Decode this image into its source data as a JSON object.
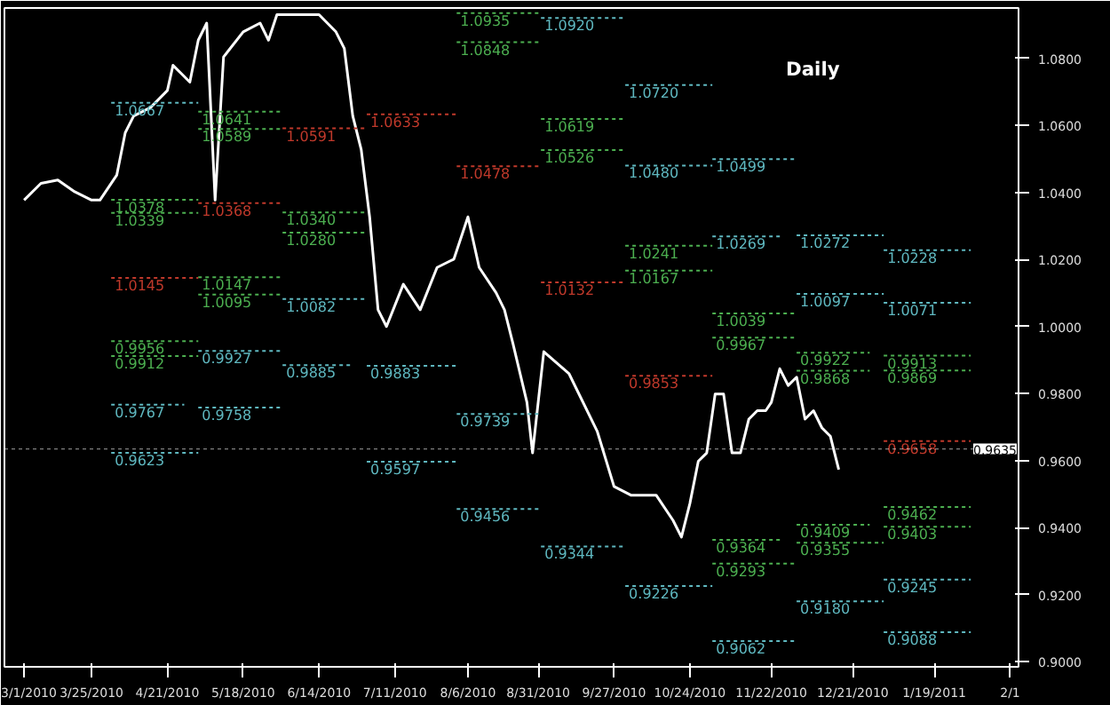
{
  "chart_data": {
    "type": "line",
    "title": "Daily",
    "line_style": "solid",
    "x": [
      "2010-03-01",
      "2010-03-07",
      "2010-03-13",
      "2010-03-19",
      "2010-03-25",
      "2010-03-28",
      "2010-04-03",
      "2010-04-06",
      "2010-04-09",
      "2010-04-15",
      "2010-04-21",
      "2010-04-23",
      "2010-04-26",
      "2010-04-29",
      "2010-05-02",
      "2010-05-05",
      "2010-05-08",
      "2010-05-11",
      "2010-05-18",
      "2010-05-24",
      "2010-05-27",
      "2010-05-30",
      "2010-06-05",
      "2010-06-14",
      "2010-06-20",
      "2010-06-23",
      "2010-06-26",
      "2010-06-29",
      "2010-07-02",
      "2010-07-05",
      "2010-07-08",
      "2010-07-14",
      "2010-07-20",
      "2010-07-26",
      "2010-08-01",
      "2010-08-06",
      "2010-08-10",
      "2010-08-16",
      "2010-08-19",
      "2010-08-22",
      "2010-08-27",
      "2010-08-29",
      "2010-09-02",
      "2010-09-11",
      "2010-09-21",
      "2010-09-27",
      "2010-10-03",
      "2010-10-12",
      "2010-10-18",
      "2010-10-21",
      "2010-10-24",
      "2010-10-27",
      "2010-10-30",
      "2010-11-02",
      "2010-11-05",
      "2010-11-08",
      "2010-11-11",
      "2010-11-14",
      "2010-11-17",
      "2010-11-20",
      "2010-11-22",
      "2010-11-25",
      "2010-11-28",
      "2010-12-01",
      "2010-12-04",
      "2010-12-07",
      "2010-12-10",
      "2010-12-13",
      "2010-12-16"
    ],
    "series": [
      {
        "color": "#ffffff",
        "values": [
          1.0377,
          1.0427,
          1.0437,
          1.0402,
          1.0377,
          1.0377,
          1.0452,
          1.0578,
          1.0628,
          1.0653,
          1.0704,
          1.0779,
          1.0754,
          1.0729,
          1.0854,
          1.0905,
          1.0377,
          1.0804,
          1.0879,
          1.0905,
          1.0854,
          1.093,
          1.093,
          1.093,
          1.0879,
          1.0829,
          1.0628,
          1.0528,
          1.0327,
          1.005,
          1.0,
          1.0126,
          1.005,
          1.0176,
          1.0201,
          1.0327,
          1.0176,
          1.0101,
          1.005,
          0.995,
          0.9774,
          0.9623,
          0.9925,
          0.9859,
          0.9688,
          0.9523,
          0.9497,
          0.9497,
          0.9422,
          0.9372,
          0.9472,
          0.9598,
          0.9623,
          0.9799,
          0.9799,
          0.9623,
          0.9623,
          0.9724,
          0.9749,
          0.9749,
          0.9774,
          0.9874,
          0.9824,
          0.9849,
          0.9724,
          0.9749,
          0.9698,
          0.9673,
          0.9573
        ]
      },
      {
        "line_style": "dashed",
        "color": "#5fb8c0",
        "x": [
          "2010-04-01",
          "2010-05-02"
        ],
        "values": [
          1.0667,
          1.0667
        ],
        "value_labels": [
          "1.0667",
          null
        ]
      },
      {
        "line_style": "dashed",
        "color": "#4caf50",
        "x": [
          "2010-04-01",
          "2010-05-02"
        ],
        "values": [
          1.0378,
          1.0378
        ],
        "value_labels": [
          "1.0378",
          null
        ]
      },
      {
        "line_style": "dashed",
        "color": "#4caf50",
        "x": [
          "2010-04-01",
          "2010-05-02"
        ],
        "values": [
          1.0339,
          1.0339
        ],
        "value_labels": [
          "1.0339",
          null
        ]
      },
      {
        "line_style": "dashed",
        "color": "#c0392b",
        "x": [
          "2010-04-01",
          "2010-05-02"
        ],
        "values": [
          1.0145,
          1.0145
        ],
        "value_labels": [
          "1.0145",
          null
        ]
      },
      {
        "line_style": "dashed",
        "color": "#4caf50",
        "x": [
          "2010-04-01",
          "2010-05-02"
        ],
        "values": [
          0.9956,
          0.9956
        ],
        "value_labels": [
          "0.9956",
          null
        ]
      },
      {
        "line_style": "dashed",
        "color": "#4caf50",
        "x": [
          "2010-04-01",
          "2010-05-02"
        ],
        "values": [
          0.9912,
          0.9912
        ],
        "value_labels": [
          "0.9912",
          null
        ]
      },
      {
        "line_style": "dashed",
        "color": "#5fb8c0",
        "x": [
          "2010-04-01",
          "2010-04-27"
        ],
        "values": [
          0.9767,
          0.9767
        ],
        "value_labels": [
          "0.9767",
          null
        ]
      },
      {
        "line_style": "dashed",
        "color": "#5fb8c0",
        "x": [
          "2010-04-01",
          "2010-05-02"
        ],
        "values": [
          0.9623,
          0.9623
        ],
        "value_labels": [
          "0.9623",
          null
        ]
      },
      {
        "line_style": "dashed",
        "color": "#4caf50",
        "x": [
          "2010-05-02",
          "2010-06-01"
        ],
        "values": [
          1.0641,
          1.0641
        ],
        "value_labels": [
          "1.0641",
          null
        ]
      },
      {
        "line_style": "dashed",
        "color": "#4caf50",
        "x": [
          "2010-05-02",
          "2010-06-01"
        ],
        "values": [
          1.0589,
          1.0589
        ],
        "value_labels": [
          "1.0589",
          null
        ]
      },
      {
        "line_style": "dashed",
        "color": "#c0392b",
        "x": [
          "2010-05-02",
          "2010-06-01"
        ],
        "values": [
          1.0368,
          1.0368
        ],
        "value_labels": [
          "1.0368",
          null
        ]
      },
      {
        "line_style": "dashed",
        "color": "#4caf50",
        "x": [
          "2010-05-02",
          "2010-06-01"
        ],
        "values": [
          1.0147,
          1.0147
        ],
        "value_labels": [
          "1.0147",
          null
        ]
      },
      {
        "line_style": "dashed",
        "color": "#4caf50",
        "x": [
          "2010-05-02",
          "2010-06-01"
        ],
        "values": [
          1.0095,
          1.0095
        ],
        "value_labels": [
          "1.0095",
          null
        ]
      },
      {
        "line_style": "dashed",
        "color": "#5fb8c0",
        "x": [
          "2010-05-02",
          "2010-06-01"
        ],
        "values": [
          0.9927,
          0.9927
        ],
        "value_labels": [
          "0.9927",
          null
        ]
      },
      {
        "line_style": "dashed",
        "color": "#5fb8c0",
        "x": [
          "2010-05-02",
          "2010-06-01"
        ],
        "values": [
          0.9758,
          0.9758
        ],
        "value_labels": [
          "0.9758",
          null
        ]
      },
      {
        "line_style": "dashed",
        "color": "#c0392b",
        "x": [
          "2010-06-01",
          "2010-07-01"
        ],
        "values": [
          1.0591,
          1.0591
        ],
        "value_labels": [
          "1.0591",
          null
        ]
      },
      {
        "line_style": "dashed",
        "color": "#4caf50",
        "x": [
          "2010-06-01",
          "2010-07-01"
        ],
        "values": [
          1.034,
          1.034
        ],
        "value_labels": [
          "1.0340",
          null
        ]
      },
      {
        "line_style": "dashed",
        "color": "#4caf50",
        "x": [
          "2010-06-01",
          "2010-07-01"
        ],
        "values": [
          1.028,
          1.028
        ],
        "value_labels": [
          "1.0280",
          null
        ]
      },
      {
        "line_style": "dashed",
        "color": "#5fb8c0",
        "x": [
          "2010-06-01",
          "2010-07-01"
        ],
        "values": [
          1.0082,
          1.0082
        ],
        "value_labels": [
          "1.0082",
          null
        ]
      },
      {
        "line_style": "dashed",
        "color": "#5fb8c0",
        "x": [
          "2010-06-01",
          "2010-06-26"
        ],
        "values": [
          0.9885,
          0.9885
        ],
        "value_labels": [
          "0.9885",
          null
        ]
      },
      {
        "line_style": "dashed",
        "color": "#c0392b",
        "x": [
          "2010-07-01",
          "2010-08-02"
        ],
        "values": [
          1.0633,
          1.0633
        ],
        "value_labels": [
          "1.0633",
          null
        ]
      },
      {
        "line_style": "dashed",
        "color": "#5fb8c0",
        "x": [
          "2010-07-01",
          "2010-08-02"
        ],
        "values": [
          0.9883,
          0.9883
        ],
        "value_labels": [
          "0.9883",
          null
        ]
      },
      {
        "line_style": "dashed",
        "color": "#5fb8c0",
        "x": [
          "2010-07-01",
          "2010-08-02"
        ],
        "values": [
          0.9597,
          0.9597
        ],
        "value_labels": [
          "0.9597",
          null
        ]
      },
      {
        "line_style": "dashed",
        "color": "#4caf50",
        "x": [
          "2010-08-02",
          "2010-09-01"
        ],
        "values": [
          1.0935,
          1.0935
        ],
        "value_labels": [
          "1.0935",
          null
        ]
      },
      {
        "line_style": "dashed",
        "color": "#4caf50",
        "x": [
          "2010-08-02",
          "2010-09-01"
        ],
        "values": [
          1.0848,
          1.0848
        ],
        "value_labels": [
          "1.0848",
          null
        ]
      },
      {
        "line_style": "dashed",
        "color": "#c0392b",
        "x": [
          "2010-08-02",
          "2010-09-01"
        ],
        "values": [
          1.0478,
          1.0478
        ],
        "value_labels": [
          "1.0478",
          null
        ]
      },
      {
        "line_style": "dashed",
        "color": "#5fb8c0",
        "x": [
          "2010-08-02",
          "2010-09-01"
        ],
        "values": [
          0.9739,
          0.9739
        ],
        "value_labels": [
          "0.9739",
          null
        ]
      },
      {
        "line_style": "dashed",
        "color": "#5fb8c0",
        "x": [
          "2010-08-02",
          "2010-09-01"
        ],
        "values": [
          0.9456,
          0.9456
        ],
        "value_labels": [
          "0.9456",
          null
        ]
      },
      {
        "line_style": "dashed",
        "color": "#5fb8c0",
        "x": [
          "2010-09-01",
          "2010-10-01"
        ],
        "values": [
          1.092,
          1.092
        ],
        "value_labels": [
          "1.0920",
          null
        ]
      },
      {
        "line_style": "dashed",
        "color": "#4caf50",
        "x": [
          "2010-09-01",
          "2010-10-01"
        ],
        "values": [
          1.0619,
          1.0619
        ],
        "value_labels": [
          "1.0619",
          null
        ]
      },
      {
        "line_style": "dashed",
        "color": "#4caf50",
        "x": [
          "2010-09-01",
          "2010-10-01"
        ],
        "values": [
          1.0526,
          1.0526
        ],
        "value_labels": [
          "1.0526",
          null
        ]
      },
      {
        "line_style": "dashed",
        "color": "#c0392b",
        "x": [
          "2010-09-01",
          "2010-10-01"
        ],
        "values": [
          1.0132,
          1.0132
        ],
        "value_labels": [
          "1.0132",
          null
        ]
      },
      {
        "line_style": "dashed",
        "color": "#5fb8c0",
        "x": [
          "2010-09-01",
          "2010-10-01"
        ],
        "values": [
          0.9344,
          0.9344
        ],
        "value_labels": [
          "0.9344",
          null
        ]
      },
      {
        "line_style": "dashed",
        "color": "#5fb8c0",
        "x": [
          "2010-10-01",
          "2010-11-01"
        ],
        "values": [
          1.072,
          1.072
        ],
        "value_labels": [
          "1.0720",
          null
        ]
      },
      {
        "line_style": "dashed",
        "color": "#5fb8c0",
        "x": [
          "2010-10-01",
          "2010-11-01"
        ],
        "values": [
          1.048,
          1.048
        ],
        "value_labels": [
          "1.0480",
          null
        ]
      },
      {
        "line_style": "dashed",
        "color": "#4caf50",
        "x": [
          "2010-10-01",
          "2010-11-01"
        ],
        "values": [
          1.0241,
          1.0241
        ],
        "value_labels": [
          "1.0241",
          null
        ]
      },
      {
        "line_style": "dashed",
        "color": "#4caf50",
        "x": [
          "2010-10-01",
          "2010-11-01"
        ],
        "values": [
          1.0167,
          1.0167
        ],
        "value_labels": [
          "1.0167",
          null
        ]
      },
      {
        "line_style": "dashed",
        "color": "#c0392b",
        "x": [
          "2010-10-01",
          "2010-11-01"
        ],
        "values": [
          0.9853,
          0.9853
        ],
        "value_labels": [
          "0.9853",
          null
        ]
      },
      {
        "line_style": "dashed",
        "color": "#5fb8c0",
        "x": [
          "2010-10-01",
          "2010-11-01"
        ],
        "values": [
          0.9226,
          0.9226
        ],
        "value_labels": [
          "0.9226",
          null
        ]
      },
      {
        "line_style": "dashed",
        "color": "#5fb8c0",
        "x": [
          "2010-11-01",
          "2010-12-01"
        ],
        "values": [
          1.0499,
          1.0499
        ],
        "value_labels": [
          "1.0499",
          null
        ]
      },
      {
        "line_style": "dashed",
        "color": "#5fb8c0",
        "x": [
          "2010-11-01",
          "2010-11-26"
        ],
        "values": [
          1.0269,
          1.0269
        ],
        "value_labels": [
          "1.0269",
          null
        ]
      },
      {
        "line_style": "dashed",
        "color": "#4caf50",
        "x": [
          "2010-11-01",
          "2010-12-01"
        ],
        "values": [
          1.0039,
          1.0039
        ],
        "value_labels": [
          "1.0039",
          null
        ]
      },
      {
        "line_style": "dashed",
        "color": "#4caf50",
        "x": [
          "2010-11-01",
          "2010-12-01"
        ],
        "values": [
          0.9967,
          0.9967
        ],
        "value_labels": [
          "0.9967",
          null
        ]
      },
      {
        "line_style": "dashed",
        "color": "#4caf50",
        "x": [
          "2010-11-01",
          "2010-11-26"
        ],
        "values": [
          0.9364,
          0.9364
        ],
        "value_labels": [
          "0.9364",
          null
        ]
      },
      {
        "line_style": "dashed",
        "color": "#4caf50",
        "x": [
          "2010-11-01",
          "2010-12-01"
        ],
        "values": [
          0.9293,
          0.9293
        ],
        "value_labels": [
          "0.9293",
          null
        ]
      },
      {
        "line_style": "dashed",
        "color": "#5fb8c0",
        "x": [
          "2010-11-01",
          "2010-12-01"
        ],
        "values": [
          0.9062,
          0.9062
        ],
        "value_labels": [
          "0.9062",
          null
        ]
      },
      {
        "line_style": "dashed",
        "color": "#5fb8c0",
        "x": [
          "2010-12-01",
          "2011-01-01"
        ],
        "values": [
          1.0272,
          1.0272
        ],
        "value_labels": [
          "1.0272",
          null
        ]
      },
      {
        "line_style": "dashed",
        "color": "#5fb8c0",
        "x": [
          "2010-12-01",
          "2011-01-01"
        ],
        "values": [
          1.0097,
          1.0097
        ],
        "value_labels": [
          "1.0097",
          null
        ]
      },
      {
        "line_style": "dashed",
        "color": "#4caf50",
        "x": [
          "2010-12-01",
          "2010-12-27"
        ],
        "values": [
          0.9922,
          0.9922
        ],
        "value_labels": [
          "0.9922",
          null
        ]
      },
      {
        "line_style": "dashed",
        "color": "#4caf50",
        "x": [
          "2010-12-01",
          "2010-12-27"
        ],
        "values": [
          0.9868,
          0.9868
        ],
        "value_labels": [
          "0.9868",
          null
        ]
      },
      {
        "line_style": "dashed",
        "color": "#4caf50",
        "x": [
          "2010-12-01",
          "2010-12-27"
        ],
        "values": [
          0.9409,
          0.9409
        ],
        "value_labels": [
          "0.9409",
          null
        ]
      },
      {
        "line_style": "dashed",
        "color": "#4caf50",
        "x": [
          "2010-12-01",
          "2011-01-01"
        ],
        "values": [
          0.9355,
          0.9355
        ],
        "value_labels": [
          "0.9355",
          null
        ]
      },
      {
        "line_style": "dashed",
        "color": "#5fb8c0",
        "x": [
          "2010-12-01",
          "2011-01-01"
        ],
        "values": [
          0.918,
          0.918
        ],
        "value_labels": [
          "0.9180",
          null
        ]
      },
      {
        "line_style": "dashed",
        "color": "#5fb8c0",
        "x": [
          "2011-01-01",
          "2011-02-01"
        ],
        "values": [
          1.0228,
          1.0228
        ],
        "value_labels": [
          "1.0228",
          null
        ]
      },
      {
        "line_style": "dashed",
        "color": "#5fb8c0",
        "x": [
          "2011-01-01",
          "2011-02-01"
        ],
        "values": [
          1.0071,
          1.0071
        ],
        "value_labels": [
          "1.0071",
          null
        ]
      },
      {
        "line_style": "dashed",
        "color": "#4caf50",
        "x": [
          "2011-01-01",
          "2011-02-01"
        ],
        "values": [
          0.9913,
          0.9913
        ],
        "value_labels": [
          "0.9913",
          null
        ]
      },
      {
        "line_style": "dashed",
        "color": "#4caf50",
        "x": [
          "2011-01-01",
          "2011-02-01"
        ],
        "values": [
          0.9869,
          0.9869
        ],
        "value_labels": [
          "0.9869",
          null
        ]
      },
      {
        "line_style": "dashed",
        "color": "#c0392b",
        "x": [
          "2011-01-01",
          "2011-02-01"
        ],
        "values": [
          0.9658,
          0.9658
        ],
        "value_labels": [
          "0.9658",
          null
        ]
      },
      {
        "line_style": "dashed",
        "color": "#4caf50",
        "x": [
          "2011-01-01",
          "2011-02-01"
        ],
        "values": [
          0.9462,
          0.9462
        ],
        "value_labels": [
          "0.9462",
          null
        ]
      },
      {
        "line_style": "dashed",
        "color": "#4caf50",
        "x": [
          "2011-01-01",
          "2011-02-01"
        ],
        "values": [
          0.9403,
          0.9403
        ],
        "value_labels": [
          "0.9403",
          null
        ]
      },
      {
        "line_style": "dashed",
        "color": "#5fb8c0",
        "x": [
          "2011-01-01",
          "2011-02-01"
        ],
        "values": [
          0.9245,
          0.9245
        ],
        "value_labels": [
          "0.9245",
          null
        ]
      },
      {
        "line_style": "dashed",
        "color": "#5fb8c0",
        "x": [
          "2011-01-01",
          "2011-02-01"
        ],
        "values": [
          0.9088,
          0.9088
        ],
        "value_labels": [
          "0.9088",
          null
        ]
      }
    ],
    "xlim": [
      "2010-02-22",
      "2011-02-18"
    ],
    "xticks": [
      {
        "value": "2010-03-01",
        "label": "3/1/2010"
      },
      {
        "value": "2010-03-25",
        "label": "3/25/2010"
      },
      {
        "value": "2010-04-21",
        "label": "4/21/2010"
      },
      {
        "value": "2010-05-18",
        "label": "5/18/2010"
      },
      {
        "value": "2010-06-14",
        "label": "6/14/2010"
      },
      {
        "value": "2010-07-11",
        "label": "7/11/2010"
      },
      {
        "value": "2010-08-06",
        "label": "8/6/2010"
      },
      {
        "value": "2010-08-31",
        "label": "8/31/2010"
      },
      {
        "value": "2010-09-27",
        "label": "9/27/2010"
      },
      {
        "value": "2010-10-24",
        "label": "10/24/2010"
      },
      {
        "value": "2010-11-22",
        "label": "11/22/2010"
      },
      {
        "value": "2010-12-21",
        "label": "12/21/2010"
      },
      {
        "value": "2011-01-19",
        "label": "1/19/2011"
      },
      {
        "value": "2011-02-15",
        "label": "2/1"
      }
    ],
    "ylim": [
      0.8985,
      1.095
    ],
    "yticks": [
      {
        "value": 0.9,
        "label": "0.9000"
      },
      {
        "value": 0.92,
        "label": "0.9200"
      },
      {
        "value": 0.94,
        "label": "0.9400"
      },
      {
        "value": 0.96,
        "label": "0.9600"
      },
      {
        "value": 0.98,
        "label": "0.9800"
      },
      {
        "value": 1.0,
        "label": "1.0000"
      },
      {
        "value": 1.02,
        "label": "1.0200"
      },
      {
        "value": 1.04,
        "label": "1.0400"
      },
      {
        "value": 1.06,
        "label": "1.0600"
      },
      {
        "value": 1.08,
        "label": "1.0800"
      }
    ],
    "ref_lines": [
      {
        "axis": "y",
        "value": 0.9635,
        "label": "0.9635",
        "color": "#ffffff"
      }
    ],
    "grid": false
  }
}
